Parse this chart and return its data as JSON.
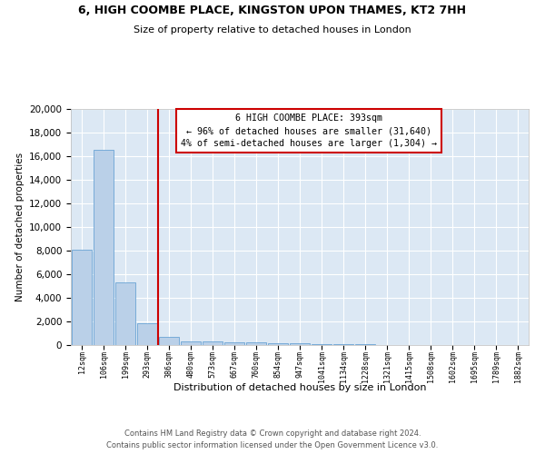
{
  "title1": "6, HIGH COOMBE PLACE, KINGSTON UPON THAMES, KT2 7HH",
  "title2": "Size of property relative to detached houses in London",
  "xlabel": "Distribution of detached houses by size in London",
  "ylabel": "Number of detached properties",
  "bins": [
    "12sqm",
    "106sqm",
    "199sqm",
    "293sqm",
    "386sqm",
    "480sqm",
    "573sqm",
    "667sqm",
    "760sqm",
    "854sqm",
    "947sqm",
    "1041sqm",
    "1134sqm",
    "1228sqm",
    "1321sqm",
    "1415sqm",
    "1508sqm",
    "1602sqm",
    "1695sqm",
    "1789sqm",
    "1882sqm"
  ],
  "bar_values": [
    8100,
    16500,
    5300,
    1850,
    700,
    330,
    270,
    225,
    195,
    185,
    150,
    90,
    60,
    40,
    30,
    22,
    16,
    12,
    9,
    7,
    5
  ],
  "bar_color": "#bad0e8",
  "bar_edge_color": "#6aa3d4",
  "background_color": "#dce8f4",
  "grid_color": "#ffffff",
  "vline_color": "#cc0000",
  "vline_pos": 3.5,
  "annotation_text": "6 HIGH COOMBE PLACE: 393sqm\n← 96% of detached houses are smaller (31,640)\n4% of semi-detached houses are larger (1,304) →",
  "annotation_box_facecolor": "#ffffff",
  "annotation_box_edgecolor": "#cc0000",
  "footer1": "Contains HM Land Registry data © Crown copyright and database right 2024.",
  "footer2": "Contains public sector information licensed under the Open Government Licence v3.0.",
  "ylim": [
    0,
    20000
  ],
  "yticks": [
    0,
    2000,
    4000,
    6000,
    8000,
    10000,
    12000,
    14000,
    16000,
    18000,
    20000
  ]
}
